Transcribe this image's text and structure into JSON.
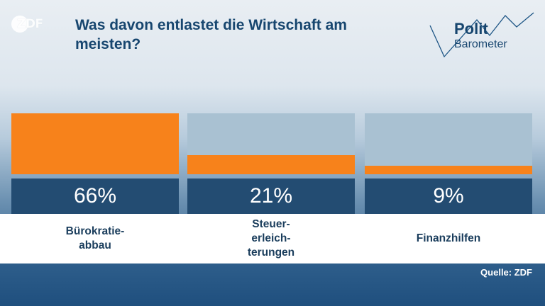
{
  "header": {
    "title": "Was davon entlastet die Wirtschaft am meisten?",
    "broadcaster_logo": "ZDF",
    "show_logo_line1": "Polit",
    "show_logo_line2": "Barometer"
  },
  "colors": {
    "bar": "#f7821b",
    "bar_background": "#a9c1d2",
    "value_box": "#234c72",
    "title": "#17466f"
  },
  "chart_data": {
    "type": "bar",
    "title": "Was davon entlastet die Wirtschaft am meisten?",
    "categories": [
      "Bürokratie-\nabbau",
      "Steuer-\nerleich-\nterungen",
      "Finanzhilfen"
    ],
    "values": [
      66,
      21,
      9
    ],
    "value_labels": [
      "66%",
      "21%",
      "9%"
    ],
    "unit": "%",
    "ylim": [
      0,
      66
    ],
    "grid": false,
    "legend": "none"
  },
  "footer": {
    "source": "Quelle: ZDF"
  }
}
